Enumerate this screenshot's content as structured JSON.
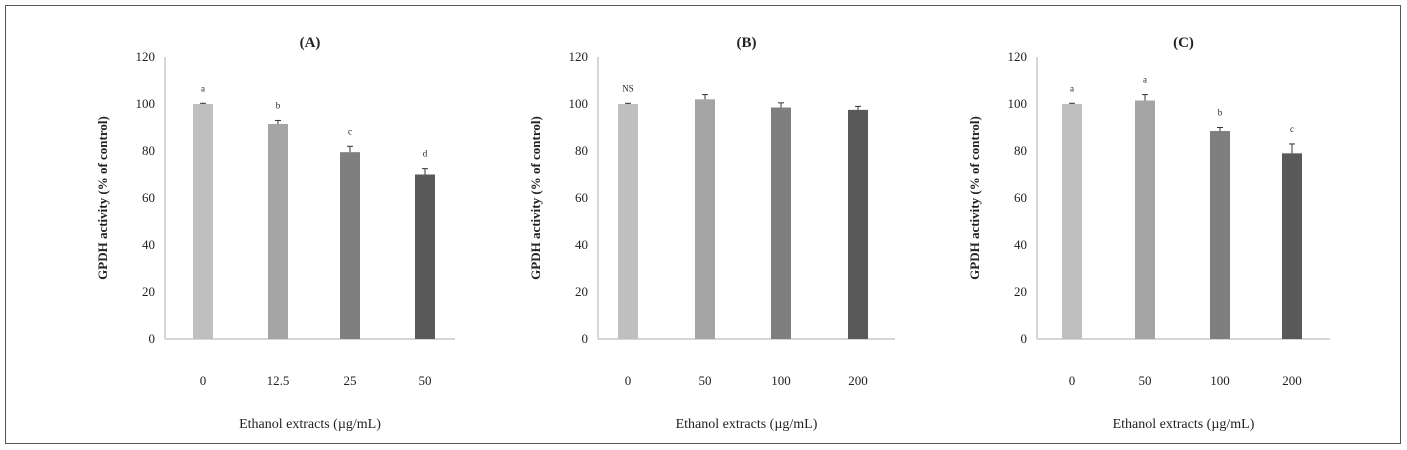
{
  "chart_data": [
    {
      "type": "bar",
      "title": "(A)",
      "xlabel": "Ethanol extracts (µg/mL)",
      "ylabel": "GPDH activity (% of control)",
      "categories": [
        "0",
        "12.5",
        "25",
        "50"
      ],
      "values": [
        100,
        91.5,
        79.5,
        70
      ],
      "errors": [
        0.3,
        1.5,
        2.5,
        2.5
      ],
      "annotations": [
        "a",
        "b",
        "c",
        "d"
      ],
      "ylim": [
        0,
        120
      ],
      "yticks": [
        0,
        20,
        40,
        60,
        80,
        100,
        120
      ],
      "grid": false
    },
    {
      "type": "bar",
      "title": "(B)",
      "xlabel": "Ethanol extracts (µg/mL)",
      "ylabel": "GPDH activity (% of control)",
      "categories": [
        "0",
        "50",
        "100",
        "200"
      ],
      "values": [
        100,
        102,
        98.5,
        97.5
      ],
      "errors": [
        0.3,
        2,
        2,
        1.5
      ],
      "annotations": [
        "NS",
        "",
        "",
        ""
      ],
      "ylim": [
        0,
        120
      ],
      "yticks": [
        0,
        20,
        40,
        60,
        80,
        100,
        120
      ],
      "grid": false
    },
    {
      "type": "bar",
      "title": "(C)",
      "xlabel": "Ethanol extracts (µg/mL)",
      "ylabel": "GPDH activity (% of control)",
      "categories": [
        "0",
        "50",
        "100",
        "200"
      ],
      "values": [
        100,
        101.5,
        88.5,
        79
      ],
      "errors": [
        0.3,
        2.5,
        1.5,
        4
      ],
      "annotations": [
        "a",
        "a",
        "b",
        "c"
      ],
      "ylim": [
        0,
        120
      ],
      "yticks": [
        0,
        20,
        40,
        60,
        80,
        100,
        120
      ],
      "grid": false
    }
  ],
  "colors": {
    "bars": [
      "#bfbfbf",
      "#a5a5a5",
      "#7f7f7f",
      "#595959"
    ],
    "axis": "#c8c8c8"
  }
}
